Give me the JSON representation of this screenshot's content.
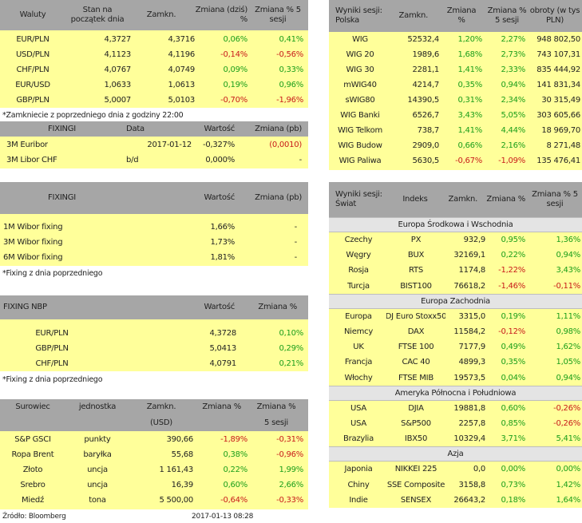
{
  "waluty": {
    "headers": [
      "Waluty",
      "Stan na początek dnia",
      "Zamkn.",
      "Zmiana (dziś) %",
      "Zmiana % 5 sesji"
    ],
    "rows": [
      [
        "EUR/PLN",
        "4,3727",
        "4,3716",
        "0,06%",
        "0,41%"
      ],
      [
        "USD/PLN",
        "4,1123",
        "4,1196",
        "-0,14%",
        "-0,56%"
      ],
      [
        "CHF/PLN",
        "4,0767",
        "4,0749",
        "0,09%",
        "0,33%"
      ],
      [
        "EUR/USD",
        "1,0633",
        "1,0613",
        "0,19%",
        "0,96%"
      ],
      [
        "GBP/PLN",
        "5,0007",
        "5,0103",
        "-0,70%",
        "-1,96%"
      ]
    ],
    "note": "*Zamkniecie z poprzedniego dnia z godziny 22:00"
  },
  "fixing1": {
    "headers": [
      "FIXINGI",
      "Data",
      "Wartość",
      "Zmiana (pb)"
    ],
    "rows": [
      [
        "3M Euribor",
        "2017-01-12",
        "-0,327%",
        "(0,0010)"
      ],
      [
        "3M Libor CHF",
        "b/d",
        "0,000%",
        "-"
      ]
    ]
  },
  "fixing2": {
    "headers": [
      "FIXINGI",
      "Wartość",
      "Zmiana (pb)"
    ],
    "rows": [
      [
        "1M Wibor fixing",
        "1,66%",
        "-"
      ],
      [
        "3M Wibor fixing",
        "1,73%",
        "-"
      ],
      [
        "6M Wibor fixing",
        "1,81%",
        "-"
      ]
    ],
    "note": "*Fixing z dnia poprzedniego"
  },
  "nbp": {
    "headers": [
      "FIXING NBP",
      "Wartość",
      "Zmiana %"
    ],
    "rows": [
      [
        "EUR/PLN",
        "4,3728",
        "0,10%"
      ],
      [
        "GBP/PLN",
        "5,0413",
        "0,29%"
      ],
      [
        "CHF/PLN",
        "4,0791",
        "0,21%"
      ]
    ],
    "note": "*Fixing z dnia poprzedniego"
  },
  "surowce": {
    "headers": [
      "Surowiec",
      "jednostka",
      "Zamkn.",
      "Zmiana %",
      "Zmiana %"
    ],
    "subheaders": [
      "(USD)",
      "5 sesji"
    ],
    "rows": [
      [
        "S&P GSCI",
        "punkty",
        "390,66",
        "-1,89%",
        "-0,31%"
      ],
      [
        "Ropa Brent",
        "baryłka",
        "55,68",
        "0,38%",
        "-0,96%"
      ],
      [
        "Złoto",
        "uncja",
        "1 161,43",
        "0,22%",
        "1,99%"
      ],
      [
        "Srebro",
        "uncja",
        "16,39",
        "0,60%",
        "2,66%"
      ],
      [
        "Miedź",
        "tona",
        "5 500,00",
        "-0,64%",
        "-0,33%"
      ]
    ]
  },
  "footer": {
    "source": "Źródło: Bloomberg",
    "timestamp": "2017-01-13 08:28"
  },
  "polska": {
    "headers": [
      "Wyniki sesji: Polska",
      "Zamkn.",
      "Zmiana %",
      "Zmiana % 5 sesji",
      "obroty (w tys PLN)"
    ],
    "rows": [
      [
        "WIG",
        "52532,4",
        "1,20%",
        "2,27%",
        "948 802,50"
      ],
      [
        "WIG 20",
        "1989,6",
        "1,68%",
        "2,73%",
        "743 107,31"
      ],
      [
        "WIG 30",
        "2281,1",
        "1,41%",
        "2,33%",
        "835 444,92"
      ],
      [
        "mWIG40",
        "4214,7",
        "0,35%",
        "0,94%",
        "141 831,34"
      ],
      [
        "sWIG80",
        "14390,5",
        "0,31%",
        "2,34%",
        "30 315,49"
      ],
      [
        "WIG Banki",
        "6526,7",
        "3,43%",
        "5,05%",
        "303 605,66"
      ],
      [
        "WIG Telkom",
        "738,7",
        "1,41%",
        "4,44%",
        "18 969,70"
      ],
      [
        "WIG Budow",
        "2909,0",
        "0,66%",
        "2,16%",
        "8 271,48"
      ],
      [
        "WIG Paliwa",
        "5630,5",
        "-0,67%",
        "-1,09%",
        "135 476,41"
      ]
    ]
  },
  "swiat": {
    "headers": [
      "Wyniki sesji: Świat",
      "Indeks",
      "Zamkn.",
      "Zmiana %",
      "Zmiana % 5 sesji"
    ],
    "sections": [
      {
        "title": "Europa Środkowa i Wschodnia",
        "rows": [
          [
            "Czechy",
            "PX",
            "932,9",
            "0,95%",
            "1,36%"
          ],
          [
            "Węgry",
            "BUX",
            "32169,1",
            "0,22%",
            "0,94%"
          ],
          [
            "Rosja",
            "RTS",
            "1174,8",
            "-1,22%",
            "3,43%"
          ],
          [
            "Turcja",
            "BIST100",
            "76618,2",
            "-1,46%",
            "-0,11%"
          ]
        ]
      },
      {
        "title": "Europa Zachodnia",
        "rows": [
          [
            "Europa",
            "DJ Euro Stoxx50",
            "3315,0",
            "0,19%",
            "1,11%"
          ],
          [
            "Niemcy",
            "DAX",
            "11584,2",
            "-0,12%",
            "0,98%"
          ],
          [
            "UK",
            "FTSE 100",
            "7177,9",
            "0,49%",
            "1,62%"
          ],
          [
            "Francja",
            "CAC 40",
            "4899,3",
            "0,35%",
            "1,05%"
          ],
          [
            "Włochy",
            "FTSE MIB",
            "19573,5",
            "0,04%",
            "0,94%"
          ]
        ]
      },
      {
        "title": "Ameryka Północna i Południowa",
        "rows": [
          [
            "USA",
            "DJIA",
            "19881,8",
            "0,60%",
            "-0,26%"
          ],
          [
            "USA",
            "S&P500",
            "2257,8",
            "0,85%",
            "-0,26%"
          ],
          [
            "Brazylia",
            "IBX50",
            "10329,4",
            "3,71%",
            "5,41%"
          ]
        ]
      },
      {
        "title": "Azja",
        "rows": [
          [
            "Japonia",
            "NIKKEI 225",
            "0,0",
            "0,00%",
            "0,00%"
          ],
          [
            "Chiny",
            "SSE Composite",
            "3158,8",
            "0,73%",
            "1,42%"
          ],
          [
            "Indie",
            "SENSEX",
            "26643,2",
            "0,18%",
            "1,64%"
          ]
        ]
      }
    ]
  },
  "colors": {
    "header_bg": "#a6a6a6",
    "row_bg": "#ffff9a",
    "section_bg": "#e4e4e4",
    "positive": "#1a9e1a",
    "negative": "#c81a1a"
  }
}
